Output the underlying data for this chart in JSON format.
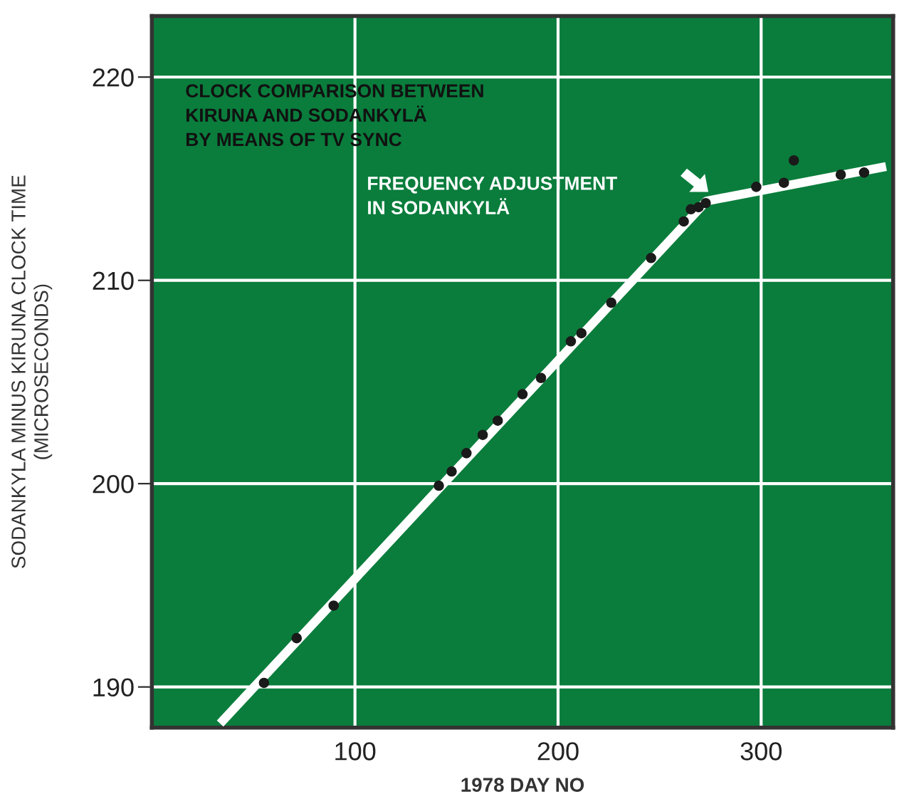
{
  "chart_data": {
    "type": "scatter",
    "xlabel": "1978 DAY NO",
    "ylabel": "SODANKYLA MINUS KIRUNA CLOCK TIME\n(MICROSECONDS)",
    "xlim": [
      0,
      365
    ],
    "ylim": [
      188,
      223
    ],
    "xticks": [
      100,
      200,
      300
    ],
    "yticks": [
      190,
      200,
      210,
      220
    ],
    "grid": true,
    "series": [
      {
        "marker": "circle",
        "color": "#1a1a1a",
        "x": [
          55.2,
          71.3,
          89.5,
          141.3,
          147.6,
          154.9,
          162.9,
          170.3,
          182.5,
          191.6,
          206.3,
          211.5,
          226.2,
          245.8,
          261.9,
          265.4,
          269.2,
          272.7,
          297.6,
          311.2,
          316.1,
          339.2,
          350.7
        ],
        "values": [
          190.2,
          192.4,
          194.0,
          199.9,
          200.6,
          201.5,
          202.4,
          203.1,
          204.4,
          205.2,
          207.0,
          207.4,
          208.9,
          211.1,
          212.9,
          213.5,
          213.6,
          213.8,
          214.6,
          214.8,
          215.9,
          215.2,
          215.3
        ]
      },
      {
        "type": "line",
        "color": "#ffffff",
        "x": [
          33.6,
          273.1,
          361.5
        ],
        "values": [
          188.2,
          213.9,
          215.6
        ]
      }
    ],
    "annotations": [
      "CLOCK COMPARISON BETWEEN\nKIRUNA AND SODANKYLÄ\nBY MEANS OF TV SYNC",
      "FREQUENCY ADJUSTMENT\nIN SODANKYLÄ"
    ]
  }
}
